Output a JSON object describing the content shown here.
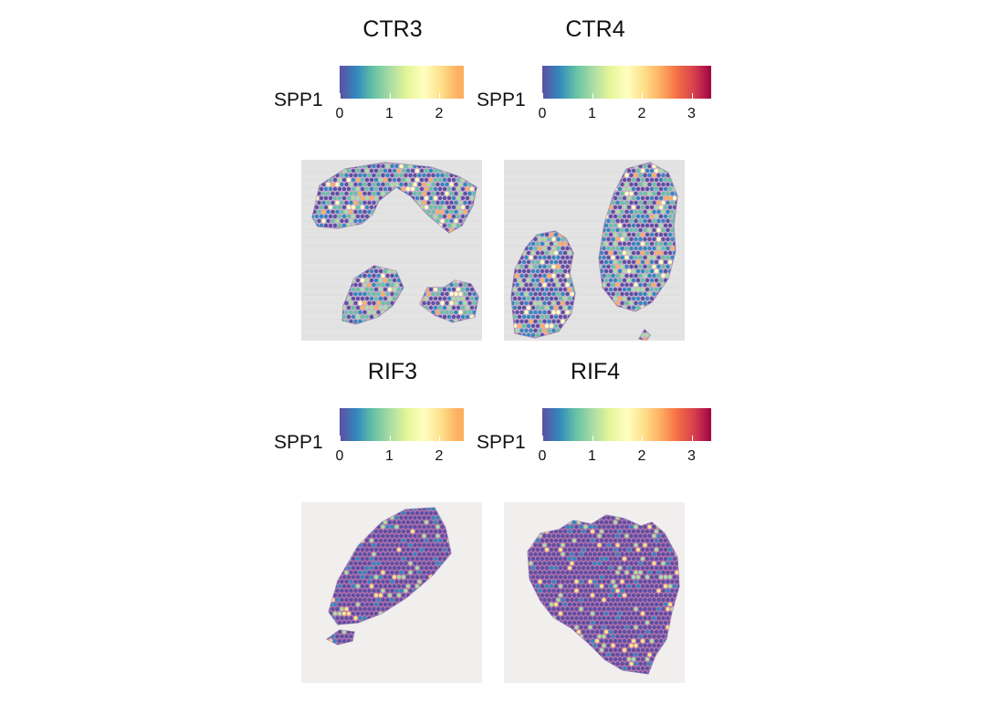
{
  "chart_data": [
    {
      "type": "heatmap",
      "title": "CTR3",
      "legend_title": "SPP1",
      "color_scale": "Spectral (reversed)",
      "range": [
        0,
        2.5
      ],
      "ticks": [
        "0",
        "1",
        "2"
      ],
      "tissue": "ctr3",
      "background": "gray"
    },
    {
      "type": "heatmap",
      "title": "CTR4",
      "legend_title": "SPP1",
      "color_scale": "Spectral (reversed)",
      "range": [
        0,
        3.4
      ],
      "ticks": [
        "0",
        "1",
        "2",
        "3"
      ],
      "tissue": "ctr4",
      "background": "gray"
    },
    {
      "type": "heatmap",
      "title": "RIF3",
      "legend_title": "SPP1",
      "color_scale": "Spectral (reversed)",
      "range": [
        0,
        2.5
      ],
      "ticks": [
        "0",
        "1",
        "2"
      ],
      "tissue": "rif3",
      "background": "light"
    },
    {
      "type": "heatmap",
      "title": "RIF4",
      "legend_title": "SPP1",
      "color_scale": "Spectral (reversed)",
      "range": [
        0,
        3.4
      ],
      "ticks": [
        "0",
        "1",
        "2",
        "3"
      ],
      "tissue": "rif4",
      "background": "light"
    }
  ],
  "colors": {
    "palette": [
      "#5e4fa2",
      "#3288bd",
      "#66c2a5",
      "#abdda4",
      "#e6f598",
      "#ffffbf",
      "#fee08b",
      "#fdae61",
      "#f46d43",
      "#d53e4f",
      "#9e0142"
    ]
  }
}
